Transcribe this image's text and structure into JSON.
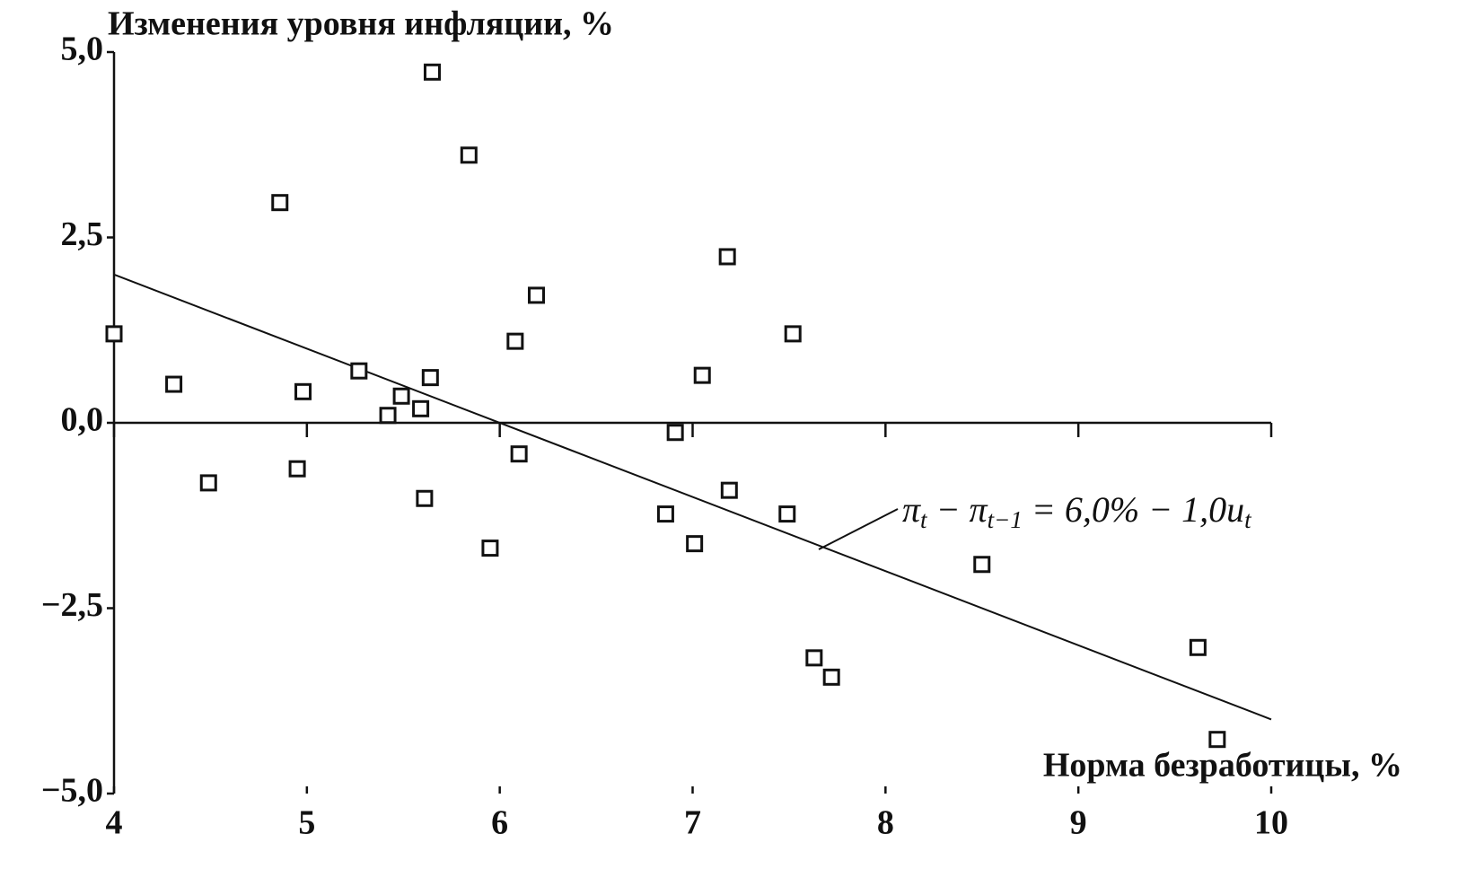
{
  "chart_data": {
    "type": "scatter",
    "title": "Изменения уровня инфляции, %",
    "x_label": "Норма безработицы, %",
    "x": [
      4.0,
      4.31,
      4.49,
      4.86,
      4.95,
      4.98,
      5.27,
      5.42,
      5.49,
      5.59,
      5.61,
      5.64,
      5.65,
      5.84,
      5.95,
      6.08,
      6.1,
      6.19,
      6.86,
      6.91,
      7.01,
      7.05,
      7.18,
      7.19,
      7.49,
      7.52,
      7.63,
      7.72,
      8.5,
      9.62,
      9.72
    ],
    "values": [
      1.2,
      0.52,
      -0.81,
      2.97,
      -0.62,
      0.42,
      0.7,
      0.1,
      0.36,
      0.19,
      -1.02,
      0.61,
      4.73,
      3.61,
      -1.69,
      1.1,
      -0.42,
      1.72,
      -1.23,
      -0.13,
      -1.63,
      0.64,
      2.24,
      -0.91,
      -1.23,
      1.2,
      -3.17,
      -3.43,
      -1.91,
      -3.03,
      -4.27
    ],
    "color": "#111111",
    "line": {
      "x": [
        4,
        10
      ],
      "values": [
        2.0,
        -4.0
      ]
    },
    "annotation": [
      "π",
      "t",
      " − π",
      "t−1",
      " = 6,0% − 1,0",
      "u",
      "t"
    ],
    "xlim": [
      4,
      10
    ],
    "xticks": [
      4,
      5,
      6,
      7,
      8,
      9,
      10
    ],
    "ylim": [
      -5,
      5
    ],
    "yticks": [
      {
        "value": -5,
        "label": "−5,0"
      },
      {
        "value": -2.5,
        "label": "−2,5"
      },
      {
        "value": 0,
        "label": "0,0"
      },
      {
        "value": 2.5,
        "label": "2,5"
      },
      {
        "value": 5,
        "label": "5,0"
      }
    ],
    "grid": false
  }
}
